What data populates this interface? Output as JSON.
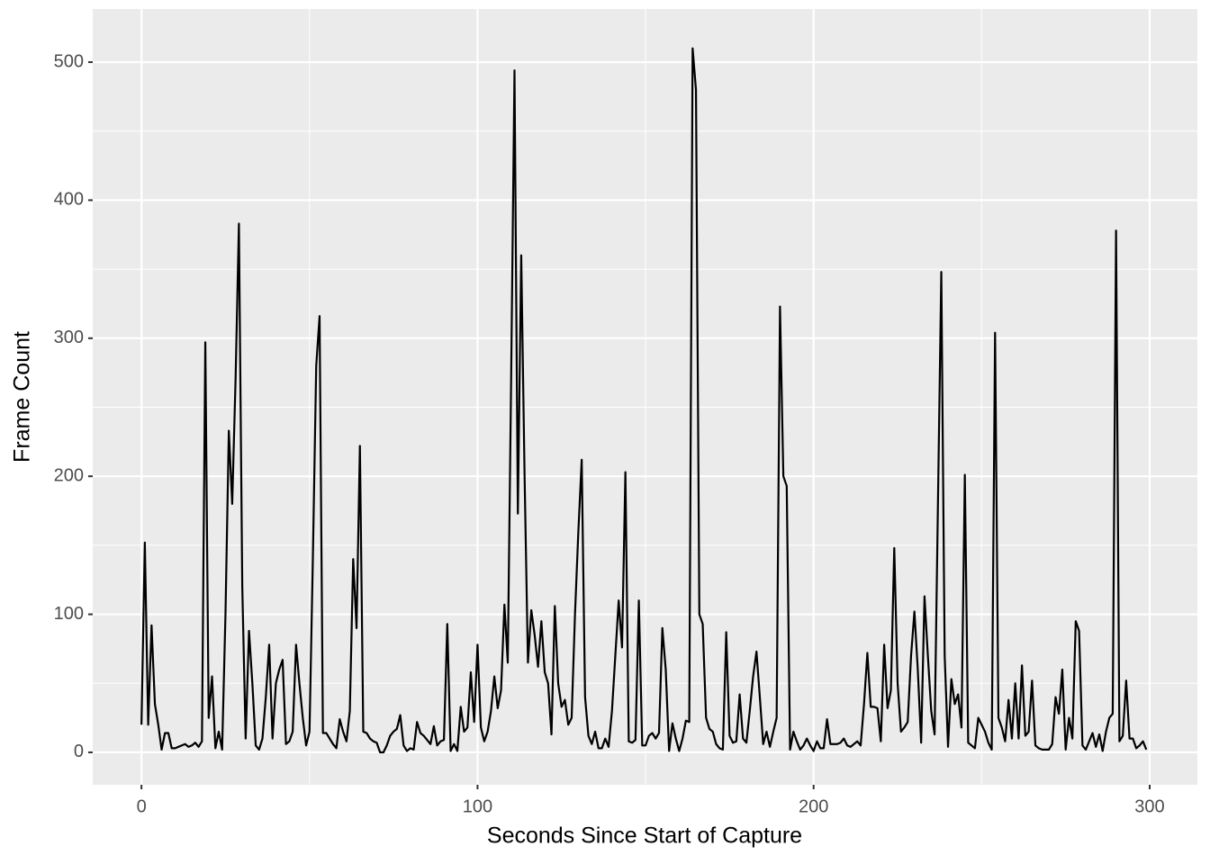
{
  "chart_data": {
    "type": "line",
    "x_label": "Seconds Since Start of Capture",
    "y_label": "Frame Count",
    "xlim": [
      -14.5,
      314.2
    ],
    "ylim": [
      -23.5,
      538.5
    ],
    "xticks": [
      0,
      100,
      200,
      300
    ],
    "yticks": [
      0,
      100,
      200,
      300,
      400,
      500
    ],
    "grid": true,
    "series": [
      {
        "color": "#000000",
        "x": [
          0,
          1,
          2,
          3,
          4,
          5,
          6,
          7,
          8,
          9,
          10,
          11,
          12,
          13,
          14,
          15,
          16,
          17,
          18,
          19,
          20,
          21,
          22,
          23,
          24,
          25,
          26,
          27,
          28,
          29,
          30,
          31,
          32,
          33,
          34,
          35,
          36,
          37,
          38,
          39,
          40,
          41,
          42,
          43,
          44,
          45,
          46,
          47,
          48,
          49,
          50,
          51,
          52,
          53,
          54,
          55,
          56,
          57,
          58,
          59,
          60,
          61,
          62,
          63,
          64,
          65,
          66,
          67,
          68,
          69,
          70,
          71,
          72,
          73,
          74,
          75,
          76,
          77,
          78,
          79,
          80,
          81,
          82,
          83,
          84,
          85,
          86,
          87,
          88,
          89,
          90,
          91,
          92,
          93,
          94,
          95,
          96,
          97,
          98,
          99,
          100,
          101,
          102,
          103,
          104,
          105,
          106,
          107,
          108,
          109,
          110,
          111,
          112,
          113,
          114,
          115,
          116,
          117,
          118,
          119,
          120,
          121,
          122,
          123,
          124,
          125,
          126,
          127,
          128,
          129,
          130,
          131,
          132,
          133,
          134,
          135,
          136,
          137,
          138,
          139,
          140,
          141,
          142,
          143,
          144,
          145,
          146,
          147,
          148,
          149,
          150,
          151,
          152,
          153,
          154,
          155,
          156,
          157,
          158,
          159,
          160,
          161,
          162,
          163,
          164,
          165,
          166,
          167,
          168,
          169,
          170,
          171,
          172,
          173,
          174,
          175,
          176,
          177,
          178,
          179,
          180,
          181,
          182,
          183,
          184,
          185,
          186,
          187,
          188,
          189,
          190,
          191,
          192,
          193,
          194,
          195,
          196,
          197,
          198,
          199,
          200,
          201,
          202,
          203,
          204,
          205,
          206,
          207,
          208,
          209,
          210,
          211,
          212,
          213,
          214,
          215,
          216,
          217,
          218,
          219,
          220,
          221,
          222,
          223,
          224,
          225,
          226,
          227,
          228,
          229,
          230,
          231,
          232,
          233,
          234,
          235,
          236,
          237,
          238,
          239,
          240,
          241,
          242,
          243,
          244,
          245,
          246,
          247,
          248,
          249,
          250,
          251,
          252,
          253,
          254,
          255,
          256,
          257,
          258,
          259,
          260,
          261,
          262,
          263,
          264,
          265,
          266,
          267,
          268,
          269,
          270,
          271,
          272,
          273,
          274,
          275,
          276,
          277,
          278,
          279,
          280,
          281,
          282,
          283,
          284,
          285,
          286,
          287,
          288,
          289,
          290,
          291,
          292,
          293,
          294,
          295,
          296,
          297,
          298,
          299
        ],
        "values": [
          20,
          152,
          20,
          92,
          35,
          20,
          2,
          14,
          14,
          3,
          3,
          4,
          5,
          6,
          4,
          5,
          7,
          4,
          8,
          297,
          25,
          55,
          3,
          15,
          2,
          100,
          233,
          180,
          270,
          383,
          120,
          10,
          88,
          50,
          5,
          2,
          10,
          40,
          78,
          10,
          50,
          60,
          67,
          6,
          8,
          15,
          78,
          50,
          25,
          5,
          15,
          140,
          280,
          316,
          14,
          14,
          10,
          6,
          3,
          24,
          15,
          8,
          30,
          140,
          90,
          222,
          15,
          14,
          10,
          8,
          7,
          0,
          0,
          5,
          12,
          15,
          17,
          27,
          5,
          1,
          3,
          2,
          22,
          14,
          12,
          9,
          6,
          19,
          5,
          8,
          9,
          93,
          1,
          6,
          1,
          33,
          15,
          18,
          58,
          22,
          78,
          18,
          8,
          15,
          30,
          55,
          32,
          45,
          107,
          65,
          270,
          494,
          173,
          360,
          200,
          65,
          103,
          85,
          62,
          95,
          58,
          50,
          13,
          106,
          50,
          33,
          38,
          20,
          25,
          100,
          160,
          212,
          40,
          12,
          6,
          15,
          3,
          3,
          10,
          4,
          30,
          70,
          110,
          76,
          203,
          8,
          7,
          9,
          110,
          5,
          5,
          12,
          14,
          10,
          14,
          90,
          60,
          1,
          21,
          10,
          1,
          10,
          23,
          22,
          510,
          480,
          100,
          93,
          25,
          17,
          15,
          6,
          3,
          2,
          87,
          12,
          7,
          8,
          42,
          10,
          7,
          30,
          55,
          73,
          40,
          6,
          15,
          4,
          15,
          25,
          323,
          200,
          193,
          2,
          15,
          8,
          2,
          5,
          10,
          5,
          1,
          8,
          3,
          3,
          24,
          6,
          6,
          6,
          7,
          10,
          5,
          4,
          6,
          8,
          5,
          35,
          72,
          33,
          33,
          32,
          8,
          78,
          32,
          45,
          148,
          50,
          15,
          18,
          22,
          70,
          102,
          60,
          7,
          113,
          70,
          30,
          13,
          180,
          348,
          70,
          4,
          53,
          35,
          42,
          18,
          201,
          7,
          5,
          3,
          25,
          20,
          15,
          7,
          2,
          304,
          25,
          18,
          8,
          38,
          10,
          50,
          10,
          63,
          12,
          15,
          52,
          5,
          3,
          2,
          2,
          2,
          6,
          40,
          28,
          60,
          2,
          25,
          10,
          95,
          88,
          5,
          2,
          8,
          14,
          4,
          13,
          1,
          15,
          25,
          28,
          378,
          8,
          12,
          52,
          10,
          10,
          3,
          5,
          8,
          2
        ]
      }
    ]
  }
}
